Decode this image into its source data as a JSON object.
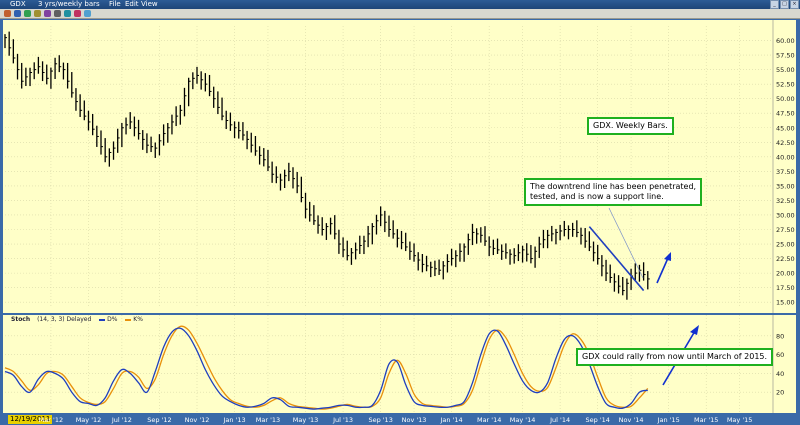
{
  "window": {
    "symbol": "GDX",
    "timeframe": "3 yrs/weekly bars",
    "menu": [
      "File",
      "Edit",
      "View"
    ]
  },
  "colors": {
    "panel_bg": "#ffffc8",
    "price_bars": "#000000",
    "trendline": "#1f3fbf",
    "arrow": "#1030d0",
    "k_line": "#1f3fbf",
    "d_line": "#e8900a",
    "annotation_border": "#1fb01f"
  },
  "annotations": [
    "GDX. Weekly Bars.",
    "The downtrend line has been penetrated,\ntested, and is now a support line.",
    "GDX could rally from now until March of 2015."
  ],
  "stoch_label": {
    "title": "Stoch",
    "params": "(14, 3, 3) Delayed",
    "d_legend": "D%",
    "k_legend": "K%"
  },
  "start_date": "12/19/2011",
  "chart_data": [
    {
      "type": "line",
      "title": "GDX",
      "subtitle": "3 yrs/weekly bars",
      "x_tick_labels": [
        "Mar '12",
        "May '12",
        "Jul '12",
        "Sep '12",
        "Nov '12",
        "Jan '13",
        "Mar '13",
        "May '13",
        "Jul '13",
        "Sep '13",
        "Nov '13",
        "Jan '14",
        "Mar '14",
        "May '14",
        "Jul '14",
        "Sep '14",
        "Nov '14",
        "Jan '15",
        "Mar '15",
        "May '15"
      ],
      "x_tick_weeks": [
        11,
        20,
        28,
        37,
        46,
        55,
        63,
        72,
        81,
        90,
        98,
        107,
        116,
        124,
        133,
        142,
        150,
        159,
        168,
        176
      ],
      "y_ticks": [
        15,
        17.5,
        20,
        22.5,
        25,
        27.5,
        30,
        32.5,
        35,
        37.5,
        40,
        42.5,
        45,
        47.5,
        50,
        52.5,
        55,
        57.5,
        60
      ],
      "ylim": [
        14,
        62.5
      ],
      "x_unit": "weeks since start date",
      "xlim": [
        0,
        184
      ],
      "series": [
        {
          "name": "GDX",
          "x": [
            0,
            2,
            4,
            6,
            8,
            10,
            12,
            14,
            16,
            18,
            20,
            22,
            24,
            26,
            28,
            30,
            32,
            34,
            36,
            38,
            40,
            42,
            44,
            46,
            48,
            50,
            52,
            54,
            56,
            58,
            60,
            62,
            64,
            66,
            68,
            70,
            72,
            74,
            76,
            78,
            80,
            82,
            84,
            86,
            88,
            90,
            92,
            94,
            96,
            98,
            100,
            102,
            104,
            106,
            108,
            110,
            112,
            114,
            116,
            118,
            120,
            122,
            124,
            126,
            128,
            130,
            132,
            134,
            136,
            138,
            140,
            142,
            144,
            146,
            148,
            150,
            152,
            154
          ],
          "values": [
            60.5,
            57,
            53,
            54.5,
            55.5,
            53.5,
            56,
            55,
            51,
            48,
            46,
            43.5,
            40,
            41.5,
            45,
            46,
            44,
            42,
            41.5,
            44,
            46,
            48,
            53,
            54,
            52.5,
            50,
            47,
            45.5,
            44.5,
            43,
            41,
            39.5,
            37,
            36,
            37.5,
            35,
            31,
            29,
            27.5,
            28.5,
            25,
            23,
            24,
            25.5,
            28,
            30,
            27.5,
            26,
            24.5,
            23,
            21.5,
            21,
            20.5,
            22,
            23,
            24.5,
            27,
            26.5,
            24.5,
            24,
            23.5,
            23,
            24,
            22.5,
            25,
            26.5,
            27,
            27.5,
            27.5,
            26.5,
            24.5,
            22.5,
            20,
            18.5,
            17,
            19.5,
            20.5,
            19
          ]
        },
        {
          "name": "Trendline",
          "x": [
            140,
            153
          ],
          "values": [
            28,
            17
          ]
        }
      ]
    },
    {
      "type": "line",
      "title": "Stoch",
      "subtitle": "(14, 3, 3) Delayed",
      "y_ticks": [
        20,
        40,
        60,
        80
      ],
      "ylim": [
        0,
        100
      ],
      "x_unit": "weeks since start date",
      "xlim": [
        0,
        184
      ],
      "series": [
        {
          "name": "D%",
          "x": [
            0,
            2,
            4,
            6,
            8,
            10,
            12,
            14,
            16,
            18,
            20,
            22,
            24,
            26,
            28,
            30,
            32,
            34,
            36,
            38,
            40,
            42,
            44,
            46,
            48,
            50,
            52,
            54,
            56,
            58,
            60,
            62,
            64,
            66,
            68,
            70,
            72,
            74,
            76,
            78,
            80,
            82,
            84,
            86,
            88,
            90,
            92,
            94,
            96,
            98,
            100,
            102,
            104,
            106,
            108,
            110,
            112,
            114,
            116,
            118,
            120,
            122,
            124,
            126,
            128,
            130,
            132,
            134,
            136,
            138,
            140,
            142,
            144,
            146,
            148,
            150,
            152,
            154
          ],
          "values": [
            42,
            38,
            26,
            20,
            34,
            42,
            40,
            34,
            20,
            10,
            8,
            6,
            14,
            32,
            44,
            40,
            30,
            20,
            42,
            68,
            84,
            88,
            80,
            64,
            44,
            28,
            16,
            10,
            6,
            4,
            5,
            8,
            14,
            12,
            5,
            4,
            3,
            2,
            3,
            4,
            6,
            6,
            4,
            4,
            6,
            22,
            50,
            52,
            28,
            10,
            6,
            5,
            4,
            4,
            6,
            10,
            30,
            60,
            82,
            85,
            70,
            50,
            32,
            22,
            20,
            30,
            56,
            76,
            80,
            70,
            50,
            26,
            8,
            4,
            3,
            8,
            20,
            22
          ]
        },
        {
          "name": "K%",
          "x": [
            0,
            2,
            4,
            6,
            8,
            10,
            12,
            14,
            16,
            18,
            20,
            22,
            24,
            26,
            28,
            30,
            32,
            34,
            36,
            38,
            40,
            42,
            44,
            46,
            48,
            50,
            52,
            54,
            56,
            58,
            60,
            62,
            64,
            66,
            68,
            70,
            72,
            74,
            76,
            78,
            80,
            82,
            84,
            86,
            88,
            90,
            92,
            94,
            96,
            98,
            100,
            102,
            104,
            106,
            108,
            110,
            112,
            114,
            116,
            118,
            120,
            122,
            124,
            126,
            128,
            130,
            132,
            134,
            136,
            138,
            140,
            142,
            144,
            146,
            148,
            150,
            152,
            154
          ],
          "values": [
            46,
            42,
            32,
            22,
            28,
            40,
            42,
            38,
            26,
            14,
            9,
            7,
            10,
            24,
            40,
            42,
            36,
            24,
            34,
            60,
            80,
            90,
            86,
            72,
            54,
            36,
            22,
            12,
            8,
            5,
            4,
            6,
            11,
            14,
            8,
            5,
            4,
            3,
            2,
            3,
            5,
            7,
            5,
            4,
            5,
            14,
            40,
            54,
            40,
            18,
            8,
            6,
            5,
            4,
            5,
            8,
            22,
            50,
            76,
            86,
            78,
            60,
            40,
            26,
            21,
            25,
            46,
            70,
            82,
            76,
            60,
            36,
            14,
            6,
            4,
            5,
            14,
            24
          ]
        }
      ]
    }
  ]
}
